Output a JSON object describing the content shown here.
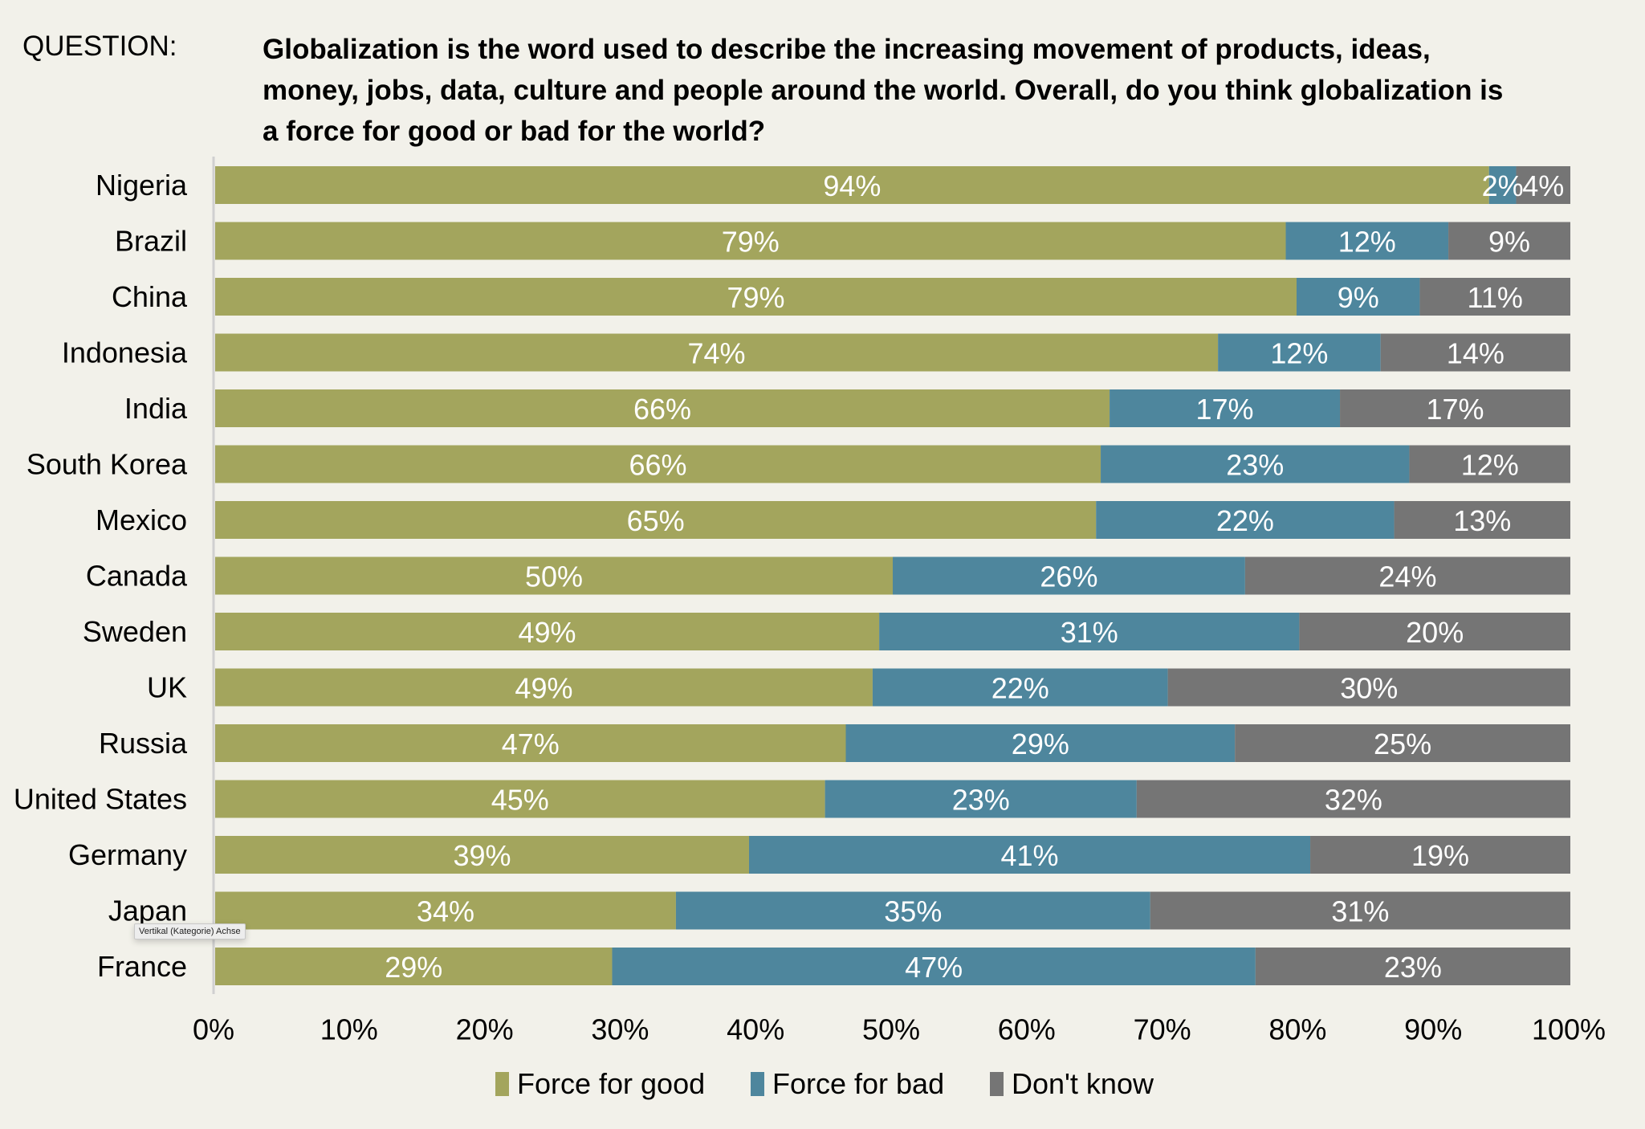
{
  "header": {
    "question_label": "QUESTION:",
    "question_lines": [
      "Globalization is the word used to describe the increasing movement of products, ideas,",
      "money, jobs, data, culture and people around the world. Overall, do you think globalization is",
      "a force for good or bad for the world?"
    ]
  },
  "tooltip": {
    "text": "Vertikal (Kategorie) Achse"
  },
  "colors": {
    "background": "#F2F1EA",
    "force_for_good": "#A3A55D",
    "force_for_bad": "#4E869D",
    "dont_know": "#757575",
    "axis_line": "#D0D0D0",
    "label_text": "#FFFFFF"
  },
  "chart_data": {
    "type": "bar",
    "orientation": "horizontal",
    "stacked": "percent",
    "title": "Globalization is the word used to describe the increasing movement of products, ideas, money, jobs, data, culture and people around the world. Overall, do you think globalization is a force for good or bad for the world?",
    "xlabel": "",
    "ylabel": "",
    "xlim": [
      0,
      100
    ],
    "grid": false,
    "legend_position": "bottom",
    "categories": [
      "Nigeria",
      "Brazil",
      "China",
      "Indonesia",
      "India",
      "South Korea",
      "Mexico",
      "Canada",
      "Sweden",
      "UK",
      "Russia",
      "United States",
      "Germany",
      "Japan",
      "France"
    ],
    "series": [
      {
        "name": "Force for good",
        "color": "#A3A55D",
        "values": [
          94,
          79,
          79,
          74,
          66,
          66,
          65,
          50,
          49,
          49,
          47,
          45,
          39,
          34,
          29
        ]
      },
      {
        "name": "Force for bad",
        "color": "#4E869D",
        "values": [
          2,
          12,
          9,
          12,
          17,
          23,
          22,
          26,
          31,
          22,
          29,
          23,
          41,
          35,
          47
        ]
      },
      {
        "name": "Don't know",
        "color": "#757575",
        "values": [
          4,
          9,
          11,
          14,
          17,
          12,
          13,
          24,
          20,
          30,
          25,
          32,
          19,
          31,
          23
        ]
      }
    ],
    "x_ticks": [
      "0%",
      "10%",
      "20%",
      "30%",
      "40%",
      "50%",
      "60%",
      "70%",
      "80%",
      "90%",
      "100%"
    ],
    "x_tick_values": [
      0,
      10,
      20,
      30,
      40,
      50,
      60,
      70,
      80,
      90,
      100
    ],
    "value_suffix": "%"
  },
  "legend": {
    "items": [
      {
        "label": "Force for good",
        "color": "#A3A55D"
      },
      {
        "label": "Force for bad",
        "color": "#4E869D"
      },
      {
        "label": "Don't know",
        "color": "#757575"
      }
    ]
  }
}
